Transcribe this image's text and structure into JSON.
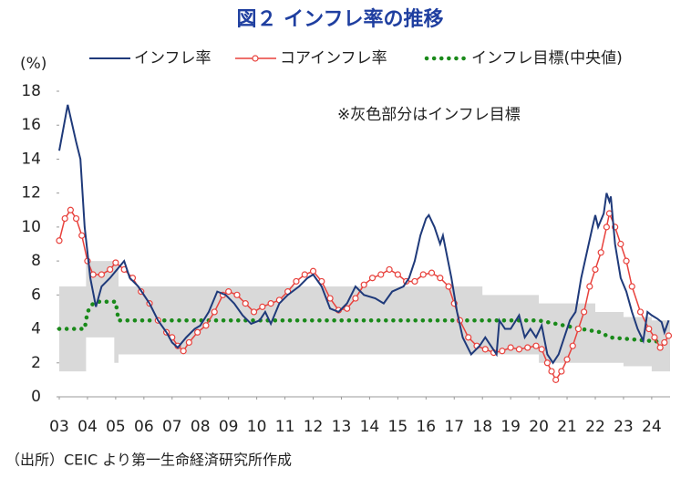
{
  "chart_data": {
    "type": "line",
    "title": "図２ インフレ率の推移",
    "ylabel": "(%)",
    "annotation": "※灰色部分はインフレ目標",
    "source": "（出所）CEIC より第一生命経済研究所作成",
    "xlim": [
      2003,
      2024.65
    ],
    "ylim": [
      0,
      18
    ],
    "yticks": [
      0,
      2,
      4,
      6,
      8,
      10,
      12,
      14,
      16,
      18
    ],
    "xticks": [
      {
        "value": 2003,
        "label": "03"
      },
      {
        "value": 2004,
        "label": "04"
      },
      {
        "value": 2005,
        "label": "05"
      },
      {
        "value": 2006,
        "label": "06"
      },
      {
        "value": 2007,
        "label": "07"
      },
      {
        "value": 2008,
        "label": "08"
      },
      {
        "value": 2009,
        "label": "09"
      },
      {
        "value": 2010,
        "label": "10"
      },
      {
        "value": 2011,
        "label": "11"
      },
      {
        "value": 2012,
        "label": "12"
      },
      {
        "value": 2013,
        "label": "13"
      },
      {
        "value": 2014,
        "label": "14"
      },
      {
        "value": 2015,
        "label": "15"
      },
      {
        "value": 2016,
        "label": "16"
      },
      {
        "value": 2017,
        "label": "17"
      },
      {
        "value": 2018,
        "label": "18"
      },
      {
        "value": 2019,
        "label": "19"
      },
      {
        "value": 2020,
        "label": "20"
      },
      {
        "value": 2021,
        "label": "21"
      },
      {
        "value": 2022,
        "label": "22"
      },
      {
        "value": 2023,
        "label": "23"
      },
      {
        "value": 2024,
        "label": "24"
      }
    ],
    "grid": false,
    "band": {
      "color": "#d9d9d9",
      "x": [
        2003,
        2003.95,
        2003.95,
        2004.95,
        2004.95,
        2005.1,
        2005.1,
        2018.0,
        2018.0,
        2020.0,
        2020.0,
        2022.0,
        2022.0,
        2023.0,
        2023.0,
        2024.0,
        2024.0,
        2024.65
      ],
      "upper": [
        6.5,
        6.5,
        8,
        8,
        8,
        8,
        6.5,
        6.5,
        6,
        6,
        5.5,
        5.5,
        5,
        5,
        4.7,
        4.7,
        4.5,
        4.5
      ],
      "lower": [
        1.5,
        1.5,
        3.5,
        3.5,
        2,
        2,
        2.5,
        2.5,
        2.5,
        2.5,
        2,
        2,
        2,
        2,
        1.8,
        1.8,
        1.5,
        1.5
      ]
    },
    "series": [
      {
        "name": "インフレ率",
        "color": "#1f3a7a",
        "style": "solid",
        "x": [
          2003.0,
          2003.3,
          2003.6,
          2003.75,
          2003.9,
          2004.1,
          2004.3,
          2004.5,
          2004.8,
          2005.3,
          2005.5,
          2005.8,
          2006.2,
          2006.5,
          2006.8,
          2007.0,
          2007.2,
          2007.5,
          2007.8,
          2008.0,
          2008.3,
          2008.6,
          2008.9,
          2009.2,
          2009.5,
          2009.8,
          2010.1,
          2010.3,
          2010.5,
          2010.8,
          2011.1,
          2011.5,
          2011.8,
          2012.0,
          2012.3,
          2012.6,
          2012.9,
          2013.2,
          2013.5,
          2013.8,
          2014.2,
          2014.5,
          2014.8,
          2015.2,
          2015.4,
          2015.6,
          2015.8,
          2016.0,
          2016.1,
          2016.3,
          2016.5,
          2016.6,
          2016.9,
          2017.1,
          2017.3,
          2017.6,
          2017.9,
          2018.1,
          2018.5,
          2018.6,
          2018.8,
          2019.0,
          2019.3,
          2019.5,
          2019.7,
          2019.9,
          2020.1,
          2020.3,
          2020.5,
          2020.7,
          2020.9,
          2021.1,
          2021.3,
          2021.5,
          2021.7,
          2021.9,
          2022.0,
          2022.1,
          2022.3,
          2022.4,
          2022.5,
          2022.55,
          2022.7,
          2022.9,
          2023.1,
          2023.3,
          2023.5,
          2023.7,
          2023.85,
          2024.0,
          2024.2,
          2024.35,
          2024.45,
          2024.6
        ],
        "values": [
          14.5,
          17.2,
          15,
          14,
          10,
          7,
          5.3,
          6.5,
          7,
          8,
          7,
          6.5,
          5.5,
          4.5,
          3.8,
          3.2,
          2.9,
          3.5,
          4,
          4.2,
          5,
          6.2,
          6,
          5.5,
          4.8,
          4.3,
          4.5,
          5,
          4.3,
          5.5,
          6,
          6.5,
          7,
          7.2,
          6.5,
          5.2,
          5,
          5.5,
          6.5,
          6,
          5.8,
          5.5,
          6.2,
          6.5,
          7,
          8,
          9.5,
          10.5,
          10.7,
          10,
          9,
          9.5,
          7,
          5,
          3.5,
          2.5,
          3,
          3.5,
          2.5,
          4.5,
          4,
          4,
          4.8,
          3.5,
          4,
          3.5,
          4.2,
          2.5,
          2,
          2.5,
          3.5,
          4.5,
          5,
          7,
          8.5,
          10,
          10.7,
          10,
          10.8,
          12,
          11.5,
          11.8,
          9,
          7,
          6.2,
          5,
          4,
          3.3,
          5,
          4.8,
          4.6,
          4.4,
          3.8,
          4.5
        ]
      },
      {
        "name": "コアインフレ率",
        "color": "#e8413c",
        "style": "marker",
        "x": [
          2003.0,
          2003.2,
          2003.4,
          2003.6,
          2003.8,
          2004.0,
          2004.2,
          2004.5,
          2004.8,
          2005.0,
          2005.3,
          2005.6,
          2005.9,
          2006.2,
          2006.5,
          2006.8,
          2007.0,
          2007.2,
          2007.4,
          2007.6,
          2007.9,
          2008.2,
          2008.5,
          2008.8,
          2009.0,
          2009.3,
          2009.6,
          2009.9,
          2010.2,
          2010.5,
          2010.8,
          2011.1,
          2011.4,
          2011.7,
          2012.0,
          2012.3,
          2012.6,
          2012.9,
          2013.2,
          2013.5,
          2013.8,
          2014.1,
          2014.4,
          2014.7,
          2015.0,
          2015.3,
          2015.6,
          2015.9,
          2016.2,
          2016.5,
          2016.8,
          2017.0,
          2017.2,
          2017.5,
          2017.8,
          2018.1,
          2018.4,
          2018.7,
          2019.0,
          2019.3,
          2019.6,
          2019.9,
          2020.1,
          2020.3,
          2020.45,
          2020.6,
          2020.8,
          2021.0,
          2021.2,
          2021.4,
          2021.6,
          2021.8,
          2022.0,
          2022.2,
          2022.4,
          2022.5,
          2022.7,
          2022.9,
          2023.1,
          2023.3,
          2023.6,
          2023.9,
          2024.1,
          2024.3,
          2024.45,
          2024.6
        ],
        "values": [
          9.2,
          10.5,
          11,
          10.5,
          9.5,
          8,
          7.2,
          7.2,
          7.5,
          7.9,
          7.5,
          7,
          6.2,
          5.5,
          4.5,
          3.8,
          3.5,
          3,
          2.7,
          3.2,
          3.8,
          4.2,
          5,
          6,
          6.2,
          6,
          5.5,
          5,
          5.3,
          5.5,
          5.7,
          6.2,
          6.8,
          7.2,
          7.4,
          6.8,
          5.8,
          5.1,
          5.2,
          5.8,
          6.6,
          7,
          7.2,
          7.5,
          7.2,
          6.8,
          6.8,
          7.2,
          7.3,
          7,
          6.5,
          5.5,
          4.5,
          3.5,
          3,
          2.8,
          2.6,
          2.7,
          2.9,
          2.8,
          2.9,
          3,
          2.8,
          2,
          1.5,
          1,
          1.5,
          2.2,
          3,
          4,
          5,
          6.5,
          7.5,
          8.5,
          10,
          10.8,
          10,
          9,
          8,
          6.5,
          5,
          4,
          3.5,
          2.9,
          3.2,
          3.6
        ]
      },
      {
        "name": "インフレ目標(中央値)",
        "color": "#1a8a1a",
        "style": "dotted",
        "x": [
          2003.0,
          2003.9,
          2004.0,
          2004.2,
          2004.4,
          2005.0,
          2005.1,
          2020.0,
          2021.5,
          2022.2,
          2022.5,
          2024.6
        ],
        "values": [
          4,
          4,
          5,
          5.5,
          5.6,
          5.6,
          4.5,
          4.5,
          4,
          3.8,
          3.5,
          3.2
        ]
      }
    ]
  }
}
